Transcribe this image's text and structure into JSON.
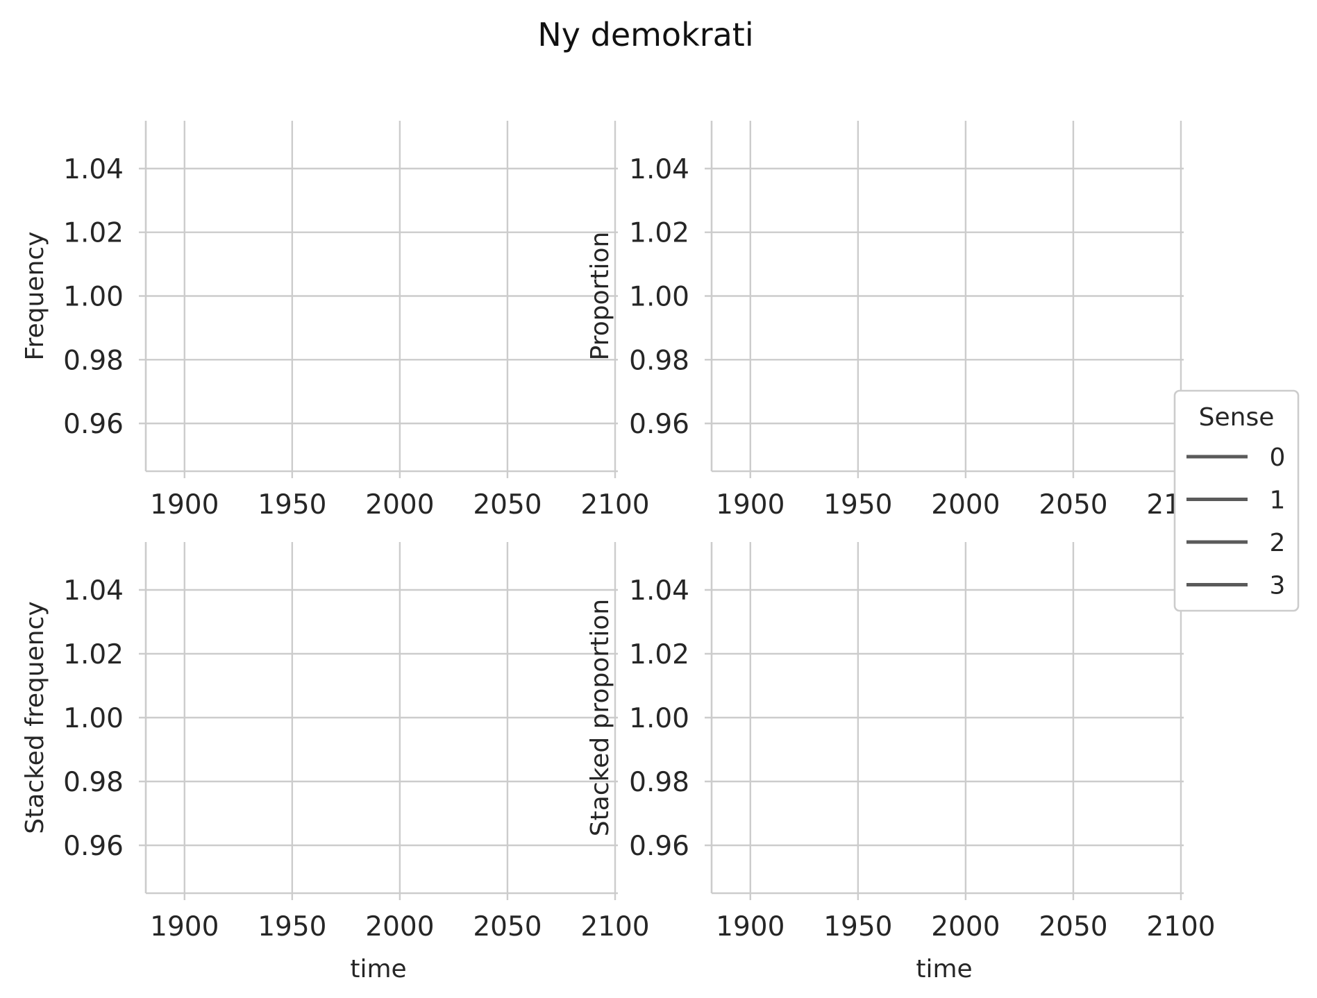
{
  "chart_data": {
    "title": "Ny demokrati",
    "type": "line",
    "shared_x": {
      "xlim": [
        1882,
        2100
      ],
      "ticks": [
        1900,
        1950,
        2000,
        2050,
        2100
      ],
      "tick_labels": [
        "1900",
        "1950",
        "2000",
        "2050",
        "2100"
      ]
    },
    "shared_y": {
      "ylim": [
        0.945,
        1.055
      ],
      "ticks": [
        0.96,
        0.98,
        1.0,
        1.02,
        1.04
      ],
      "tick_labels": [
        "0.96",
        "0.98",
        "1.00",
        "1.02",
        "1.04"
      ]
    },
    "grid": true,
    "panels": [
      {
        "id": "freq",
        "ylabel": "Frequency",
        "xlabel": "",
        "series": []
      },
      {
        "id": "prop",
        "ylabel": "Proportion",
        "xlabel": "",
        "series": []
      },
      {
        "id": "stacked-freq",
        "ylabel": "Stacked frequency",
        "xlabel": "time",
        "series": []
      },
      {
        "id": "stacked-prop",
        "ylabel": "Stacked proportion",
        "xlabel": "time",
        "series": []
      }
    ],
    "legend": {
      "title": "Sense",
      "placement": "right",
      "entries": [
        "0",
        "1",
        "2",
        "3"
      ],
      "color": "#5a5a5a"
    }
  }
}
